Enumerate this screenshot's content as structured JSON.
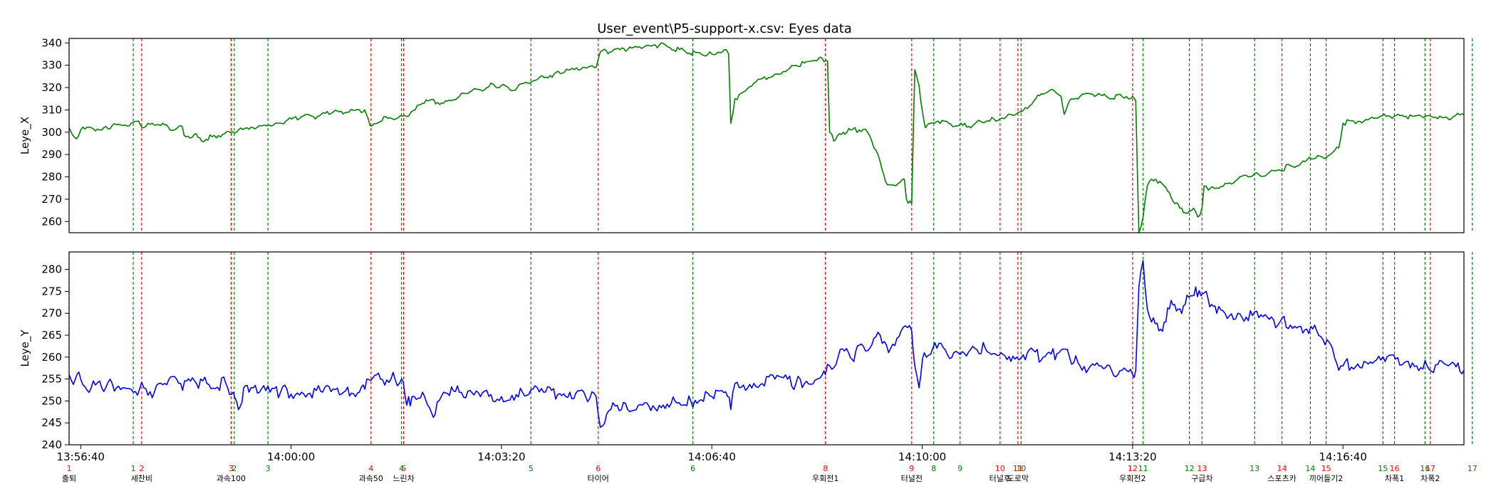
{
  "chart_data": {
    "type": "line",
    "title": "User_event\\P5-support-x.csv: Eyes data",
    "x_time_labels": [
      "13:56:40",
      "14:00:00",
      "14:03:20",
      "14:06:40",
      "14:10:00",
      "14:13:20",
      "14:16:40"
    ],
    "x_time_values": [
      0,
      200,
      400,
      600,
      800,
      1000,
      1200
    ],
    "x_range": [
      -11,
      1315
    ],
    "panels": [
      {
        "ylabel": "Leye_X",
        "ylim": [
          255,
          342
        ],
        "yticks": [
          260,
          270,
          280,
          290,
          300,
          310,
          320,
          330,
          340
        ],
        "color": "#007f00",
        "series": [
          [
            -11,
            302
          ],
          [
            -8,
            299
          ],
          [
            -4,
            297
          ],
          [
            0,
            301
          ],
          [
            10,
            302
          ],
          [
            20,
            301
          ],
          [
            30,
            303
          ],
          [
            40,
            303
          ],
          [
            48,
            304
          ],
          [
            55,
            305
          ],
          [
            60,
            302
          ],
          [
            68,
            304
          ],
          [
            78,
            304
          ],
          [
            85,
            301
          ],
          [
            95,
            303
          ],
          [
            100,
            298
          ],
          [
            108,
            299
          ],
          [
            115,
            296
          ],
          [
            125,
            298
          ],
          [
            135,
            299
          ],
          [
            148,
            300
          ],
          [
            158,
            302
          ],
          [
            170,
            303
          ],
          [
            185,
            304
          ],
          [
            195,
            305
          ],
          [
            210,
            307
          ],
          [
            225,
            307
          ],
          [
            240,
            309
          ],
          [
            255,
            309
          ],
          [
            265,
            310
          ],
          [
            270,
            310
          ],
          [
            275,
            303
          ],
          [
            290,
            307
          ],
          [
            300,
            306
          ],
          [
            310,
            307
          ],
          [
            318,
            310
          ],
          [
            320,
            312
          ],
          [
            325,
            313
          ],
          [
            330,
            314
          ],
          [
            345,
            313
          ],
          [
            360,
            316
          ],
          [
            370,
            318
          ],
          [
            380,
            319
          ],
          [
            390,
            322
          ],
          [
            395,
            320
          ],
          [
            400,
            321
          ],
          [
            408,
            319
          ],
          [
            415,
            320
          ],
          [
            425,
            322
          ],
          [
            435,
            324
          ],
          [
            450,
            326
          ],
          [
            460,
            327
          ],
          [
            475,
            328
          ],
          [
            488,
            329
          ],
          [
            490,
            329
          ],
          [
            494,
            336
          ],
          [
            505,
            336
          ],
          [
            520,
            337
          ],
          [
            535,
            338
          ],
          [
            550,
            339
          ],
          [
            560,
            338
          ],
          [
            575,
            336
          ],
          [
            590,
            335
          ],
          [
            600,
            335
          ],
          [
            612,
            337
          ],
          [
            616,
            335
          ],
          [
            618,
            304
          ],
          [
            622,
            315
          ],
          [
            630,
            318
          ],
          [
            640,
            322
          ],
          [
            660,
            326
          ],
          [
            680,
            330
          ],
          [
            700,
            332
          ],
          [
            705,
            333
          ],
          [
            710,
            332
          ],
          [
            712,
            300
          ],
          [
            716,
            296
          ],
          [
            725,
            300
          ],
          [
            732,
            301
          ],
          [
            740,
            301
          ],
          [
            748,
            300
          ],
          [
            752,
            296
          ],
          [
            758,
            290
          ],
          [
            762,
            283
          ],
          [
            765,
            278
          ],
          [
            775,
            276
          ],
          [
            783,
            279
          ],
          [
            785,
            270
          ],
          [
            790,
            268
          ],
          [
            793,
            328
          ],
          [
            797,
            321
          ],
          [
            800,
            310
          ],
          [
            803,
            302
          ],
          [
            808,
            304
          ],
          [
            815,
            305
          ],
          [
            825,
            304
          ],
          [
            835,
            303
          ],
          [
            848,
            303
          ],
          [
            855,
            305
          ],
          [
            868,
            306
          ],
          [
            880,
            307
          ],
          [
            898,
            311
          ],
          [
            908,
            315
          ],
          [
            915,
            317
          ],
          [
            922,
            319
          ],
          [
            932,
            316
          ],
          [
            935,
            308
          ],
          [
            942,
            315
          ],
          [
            950,
            316
          ],
          [
            962,
            317
          ],
          [
            975,
            316
          ],
          [
            990,
            316
          ],
          [
            1000,
            316
          ],
          [
            1003,
            314
          ],
          [
            1006,
            255
          ],
          [
            1010,
            262
          ],
          [
            1014,
            276
          ],
          [
            1018,
            279
          ],
          [
            1022,
            279
          ],
          [
            1028,
            277
          ],
          [
            1030,
            276
          ],
          [
            1035,
            273
          ],
          [
            1040,
            268
          ],
          [
            1045,
            266
          ],
          [
            1050,
            264
          ],
          [
            1058,
            266
          ],
          [
            1062,
            262
          ],
          [
            1066,
            266
          ],
          [
            1068,
            276
          ],
          [
            1072,
            274
          ],
          [
            1080,
            275
          ],
          [
            1090,
            277
          ],
          [
            1100,
            279
          ],
          [
            1110,
            280
          ],
          [
            1120,
            281
          ],
          [
            1130,
            282
          ],
          [
            1140,
            283
          ],
          [
            1150,
            285
          ],
          [
            1160,
            286
          ],
          [
            1170,
            288
          ],
          [
            1180,
            289
          ],
          [
            1188,
            290
          ],
          [
            1196,
            293
          ],
          [
            1200,
            304
          ],
          [
            1210,
            305
          ],
          [
            1220,
            305
          ],
          [
            1235,
            307
          ],
          [
            1245,
            307
          ],
          [
            1260,
            307
          ],
          [
            1275,
            307
          ],
          [
            1290,
            306
          ],
          [
            1300,
            306
          ],
          [
            1305,
            307
          ],
          [
            1315,
            308
          ]
        ]
      },
      {
        "ylabel": "Leye_Y",
        "ylim": [
          240,
          284
        ],
        "yticks": [
          240,
          245,
          250,
          255,
          260,
          265,
          270,
          275,
          280
        ],
        "color": "#0000ff",
        "series": [
          [
            -11,
            256
          ],
          [
            -5,
            255
          ],
          [
            0,
            255
          ],
          [
            10,
            253
          ],
          [
            20,
            253
          ],
          [
            30,
            254
          ],
          [
            40,
            253
          ],
          [
            50,
            252
          ],
          [
            60,
            253
          ],
          [
            70,
            252
          ],
          [
            80,
            254
          ],
          [
            95,
            254
          ],
          [
            110,
            254
          ],
          [
            120,
            254
          ],
          [
            138,
            254
          ],
          [
            145,
            252
          ],
          [
            150,
            248
          ],
          [
            155,
            253
          ],
          [
            160,
            252
          ],
          [
            170,
            252
          ],
          [
            190,
            252
          ],
          [
            210,
            252
          ],
          [
            230,
            252
          ],
          [
            250,
            252
          ],
          [
            265,
            252
          ],
          [
            272,
            255
          ],
          [
            285,
            255
          ],
          [
            295,
            255
          ],
          [
            305,
            255
          ],
          [
            310,
            249
          ],
          [
            315,
            251
          ],
          [
            325,
            252
          ],
          [
            330,
            249
          ],
          [
            337,
            247
          ],
          [
            345,
            252
          ],
          [
            360,
            252
          ],
          [
            380,
            251
          ],
          [
            400,
            251
          ],
          [
            420,
            252
          ],
          [
            440,
            252
          ],
          [
            465,
            252
          ],
          [
            480,
            251
          ],
          [
            490,
            251
          ],
          [
            494,
            244
          ],
          [
            500,
            247
          ],
          [
            510,
            249
          ],
          [
            520,
            248
          ],
          [
            530,
            249
          ],
          [
            550,
            249
          ],
          [
            565,
            250
          ],
          [
            580,
            250
          ],
          [
            600,
            251
          ],
          [
            615,
            251
          ],
          [
            618,
            248
          ],
          [
            622,
            254
          ],
          [
            640,
            254
          ],
          [
            660,
            255
          ],
          [
            680,
            254
          ],
          [
            700,
            255
          ],
          [
            705,
            256
          ],
          [
            708,
            256
          ],
          [
            712,
            258
          ],
          [
            720,
            260
          ],
          [
            730,
            261
          ],
          [
            735,
            259
          ],
          [
            742,
            263
          ],
          [
            750,
            262
          ],
          [
            760,
            265
          ],
          [
            770,
            262
          ],
          [
            780,
            266
          ],
          [
            790,
            266
          ],
          [
            793,
            258
          ],
          [
            797,
            253
          ],
          [
            802,
            261
          ],
          [
            810,
            262
          ],
          [
            830,
            261
          ],
          [
            850,
            262
          ],
          [
            860,
            262
          ],
          [
            875,
            261
          ],
          [
            890,
            260
          ],
          [
            900,
            261
          ],
          [
            915,
            260
          ],
          [
            930,
            261
          ],
          [
            940,
            260
          ],
          [
            950,
            258
          ],
          [
            960,
            258
          ],
          [
            970,
            258
          ],
          [
            980,
            257
          ],
          [
            990,
            257
          ],
          [
            1000,
            256
          ],
          [
            1003,
            257
          ],
          [
            1006,
            276
          ],
          [
            1010,
            282
          ],
          [
            1014,
            271
          ],
          [
            1018,
            268
          ],
          [
            1025,
            266
          ],
          [
            1030,
            268
          ],
          [
            1035,
            271
          ],
          [
            1040,
            272
          ],
          [
            1045,
            271
          ],
          [
            1050,
            272
          ],
          [
            1055,
            274
          ],
          [
            1060,
            276
          ],
          [
            1065,
            274
          ],
          [
            1070,
            275
          ],
          [
            1075,
            272
          ],
          [
            1080,
            270
          ],
          [
            1100,
            270
          ],
          [
            1120,
            269
          ],
          [
            1140,
            268
          ],
          [
            1160,
            267
          ],
          [
            1175,
            266
          ],
          [
            1185,
            264
          ],
          [
            1190,
            262
          ],
          [
            1196,
            257
          ],
          [
            1200,
            258
          ],
          [
            1220,
            259
          ],
          [
            1240,
            259
          ],
          [
            1260,
            259
          ],
          [
            1280,
            258
          ],
          [
            1300,
            258
          ],
          [
            1315,
            257
          ]
        ]
      }
    ],
    "red_lines": [
      {
        "x": -11,
        "num": "1",
        "label": "출퇴"
      },
      {
        "x": 58,
        "num": "2",
        "label": "세찬비"
      },
      {
        "x": 143,
        "num": "3",
        "label": "과속100"
      },
      {
        "x": 276,
        "num": "4",
        "label": "과속50"
      },
      {
        "x": 307,
        "num": "5",
        "label": "느린차"
      },
      {
        "x": 492,
        "num": "6",
        "label": "타이어"
      },
      {
        "x": 708,
        "num": "8",
        "label": "우회전1"
      },
      {
        "x": 790,
        "num": "9",
        "label": "터널전"
      },
      {
        "x": 874,
        "num": "10",
        "label": "터널후"
      },
      {
        "x": 891,
        "num": "11",
        "label": "도로막"
      },
      {
        "x": 1000,
        "num": "12",
        "label": "우회전2"
      },
      {
        "x": 1066,
        "num": "13",
        "label": "구급차"
      },
      {
        "x": 1142,
        "num": "14",
        "label": "스포츠카"
      },
      {
        "x": 1184,
        "num": "15",
        "label": "끼어들기2"
      },
      {
        "x": 1249,
        "num": "16",
        "label": "차폭1"
      },
      {
        "x": 1283,
        "num": "17",
        "label": "차폭2"
      }
    ],
    "green_lines": [
      {
        "x": 50,
        "num": "1"
      },
      {
        "x": 146,
        "num": "2"
      },
      {
        "x": 178,
        "num": "3"
      },
      {
        "x": 305,
        "num": "4"
      },
      {
        "x": 428,
        "num": "5"
      },
      {
        "x": 582,
        "num": "6"
      },
      {
        "x": 811,
        "num": "8"
      },
      {
        "x": 836,
        "num": "9"
      },
      {
        "x": 894,
        "num": "10"
      },
      {
        "x": 1010,
        "num": "11"
      },
      {
        "x": 1054,
        "num": "12"
      },
      {
        "x": 1116,
        "num": "13"
      },
      {
        "x": 1169,
        "num": "14"
      },
      {
        "x": 1238,
        "num": "15"
      },
      {
        "x": 1278,
        "num": "16"
      },
      {
        "x": 1323,
        "num": "17"
      }
    ],
    "colors": {
      "red": "#ff0000",
      "green": "#008000",
      "axis": "#000000"
    }
  }
}
